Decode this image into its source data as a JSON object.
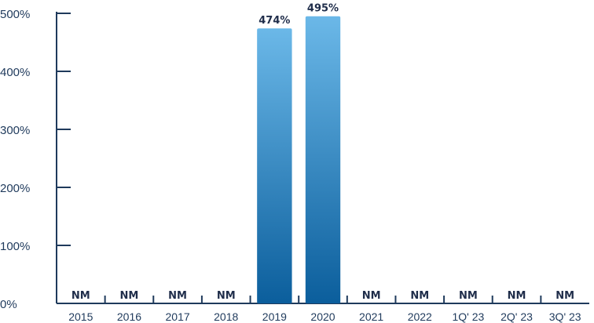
{
  "chart_data": {
    "type": "bar",
    "categories": [
      "2015",
      "2016",
      "2017",
      "2018",
      "2019",
      "2020",
      "2021",
      "2022",
      "1Q' 23",
      "2Q' 23",
      "3Q' 23"
    ],
    "values": [
      null,
      null,
      null,
      null,
      474,
      495,
      null,
      null,
      null,
      null,
      null
    ],
    "data_labels": [
      "NM",
      "NM",
      "NM",
      "NM",
      "474%",
      "495%",
      "NM",
      "NM",
      "NM",
      "NM",
      "NM"
    ],
    "y_ticks": [
      "0%",
      "100%",
      "200%",
      "300%",
      "400%",
      "500%"
    ],
    "ylim": [
      0,
      500
    ],
    "title": "",
    "xlabel": "",
    "ylabel": "",
    "grid": false,
    "colors": {
      "bar_top": "#6bb8e8",
      "bar_bottom": "#0b5e9c",
      "axis": "#1f3a5c",
      "text": "#1f3a5c"
    }
  }
}
